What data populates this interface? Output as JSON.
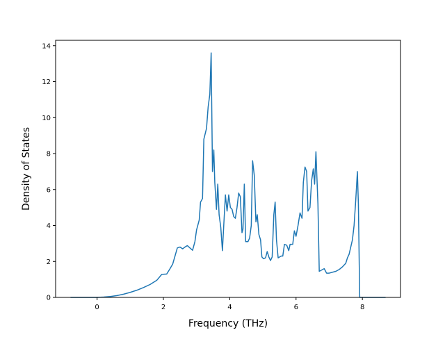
{
  "chart_data": {
    "type": "line",
    "title": "",
    "xlabel": "Frequency (THz)",
    "ylabel": "Density of States",
    "xlim": [
      -1.25,
      9.15
    ],
    "ylim": [
      0,
      14.3
    ],
    "xticks": [
      0,
      2,
      4,
      6,
      8
    ],
    "yticks": [
      0,
      2,
      4,
      6,
      8,
      10,
      12,
      14
    ],
    "grid": false,
    "legend": "none",
    "series": [
      {
        "color": "#1f77b4",
        "points": [
          [
            -0.8,
            0.0
          ],
          [
            0.0,
            0.0
          ],
          [
            0.2,
            0.02
          ],
          [
            0.4,
            0.05
          ],
          [
            0.6,
            0.1
          ],
          [
            0.8,
            0.18
          ],
          [
            1.0,
            0.28
          ],
          [
            1.2,
            0.4
          ],
          [
            1.4,
            0.55
          ],
          [
            1.6,
            0.72
          ],
          [
            1.8,
            0.95
          ],
          [
            1.95,
            1.28
          ],
          [
            2.1,
            1.3
          ],
          [
            2.2,
            1.6
          ],
          [
            2.28,
            1.85
          ],
          [
            2.35,
            2.3
          ],
          [
            2.42,
            2.75
          ],
          [
            2.5,
            2.8
          ],
          [
            2.58,
            2.7
          ],
          [
            2.65,
            2.8
          ],
          [
            2.72,
            2.88
          ],
          [
            2.8,
            2.75
          ],
          [
            2.88,
            2.62
          ],
          [
            2.95,
            3.1
          ],
          [
            3.0,
            3.75
          ],
          [
            3.08,
            4.3
          ],
          [
            3.12,
            5.3
          ],
          [
            3.18,
            5.5
          ],
          [
            3.22,
            8.8
          ],
          [
            3.3,
            9.4
          ],
          [
            3.35,
            10.6
          ],
          [
            3.4,
            11.3
          ],
          [
            3.44,
            13.6
          ],
          [
            3.48,
            7.0
          ],
          [
            3.52,
            8.2
          ],
          [
            3.55,
            6.4
          ],
          [
            3.6,
            4.9
          ],
          [
            3.64,
            6.3
          ],
          [
            3.68,
            4.6
          ],
          [
            3.73,
            3.9
          ],
          [
            3.78,
            2.6
          ],
          [
            3.82,
            4.0
          ],
          [
            3.87,
            5.7
          ],
          [
            3.92,
            4.8
          ],
          [
            3.97,
            5.7
          ],
          [
            4.02,
            5.0
          ],
          [
            4.07,
            4.9
          ],
          [
            4.12,
            4.5
          ],
          [
            4.17,
            4.4
          ],
          [
            4.22,
            5.0
          ],
          [
            4.27,
            5.8
          ],
          [
            4.32,
            5.6
          ],
          [
            4.37,
            3.6
          ],
          [
            4.4,
            3.8
          ],
          [
            4.44,
            6.3
          ],
          [
            4.48,
            3.1
          ],
          [
            4.55,
            3.1
          ],
          [
            4.6,
            3.3
          ],
          [
            4.65,
            4.0
          ],
          [
            4.69,
            7.6
          ],
          [
            4.74,
            6.8
          ],
          [
            4.79,
            4.2
          ],
          [
            4.83,
            4.6
          ],
          [
            4.88,
            3.5
          ],
          [
            4.93,
            3.2
          ],
          [
            4.97,
            2.25
          ],
          [
            5.02,
            2.15
          ],
          [
            5.08,
            2.2
          ],
          [
            5.13,
            2.55
          ],
          [
            5.18,
            2.25
          ],
          [
            5.23,
            2.05
          ],
          [
            5.28,
            2.25
          ],
          [
            5.33,
            4.6
          ],
          [
            5.37,
            5.3
          ],
          [
            5.41,
            3.2
          ],
          [
            5.46,
            2.2
          ],
          [
            5.55,
            2.3
          ],
          [
            5.6,
            2.3
          ],
          [
            5.65,
            2.95
          ],
          [
            5.72,
            2.9
          ],
          [
            5.78,
            2.6
          ],
          [
            5.82,
            2.95
          ],
          [
            5.9,
            2.95
          ],
          [
            5.95,
            3.7
          ],
          [
            6.0,
            3.4
          ],
          [
            6.06,
            4.0
          ],
          [
            6.12,
            4.7
          ],
          [
            6.18,
            4.4
          ],
          [
            6.22,
            6.4
          ],
          [
            6.27,
            7.25
          ],
          [
            6.32,
            7.0
          ],
          [
            6.36,
            4.8
          ],
          [
            6.42,
            5.0
          ],
          [
            6.47,
            6.5
          ],
          [
            6.52,
            7.15
          ],
          [
            6.56,
            6.3
          ],
          [
            6.6,
            8.1
          ],
          [
            6.66,
            5.2
          ],
          [
            6.7,
            1.45
          ],
          [
            6.8,
            1.55
          ],
          [
            6.85,
            1.6
          ],
          [
            6.92,
            1.35
          ],
          [
            7.0,
            1.35
          ],
          [
            7.1,
            1.4
          ],
          [
            7.2,
            1.45
          ],
          [
            7.3,
            1.55
          ],
          [
            7.4,
            1.7
          ],
          [
            7.5,
            1.9
          ],
          [
            7.55,
            2.2
          ],
          [
            7.6,
            2.4
          ],
          [
            7.65,
            2.8
          ],
          [
            7.7,
            3.2
          ],
          [
            7.75,
            4.0
          ],
          [
            7.8,
            5.4
          ],
          [
            7.85,
            7.0
          ],
          [
            7.88,
            5.2
          ],
          [
            7.92,
            0.0
          ],
          [
            8.0,
            0.0
          ],
          [
            8.7,
            0.0
          ]
        ]
      }
    ]
  }
}
